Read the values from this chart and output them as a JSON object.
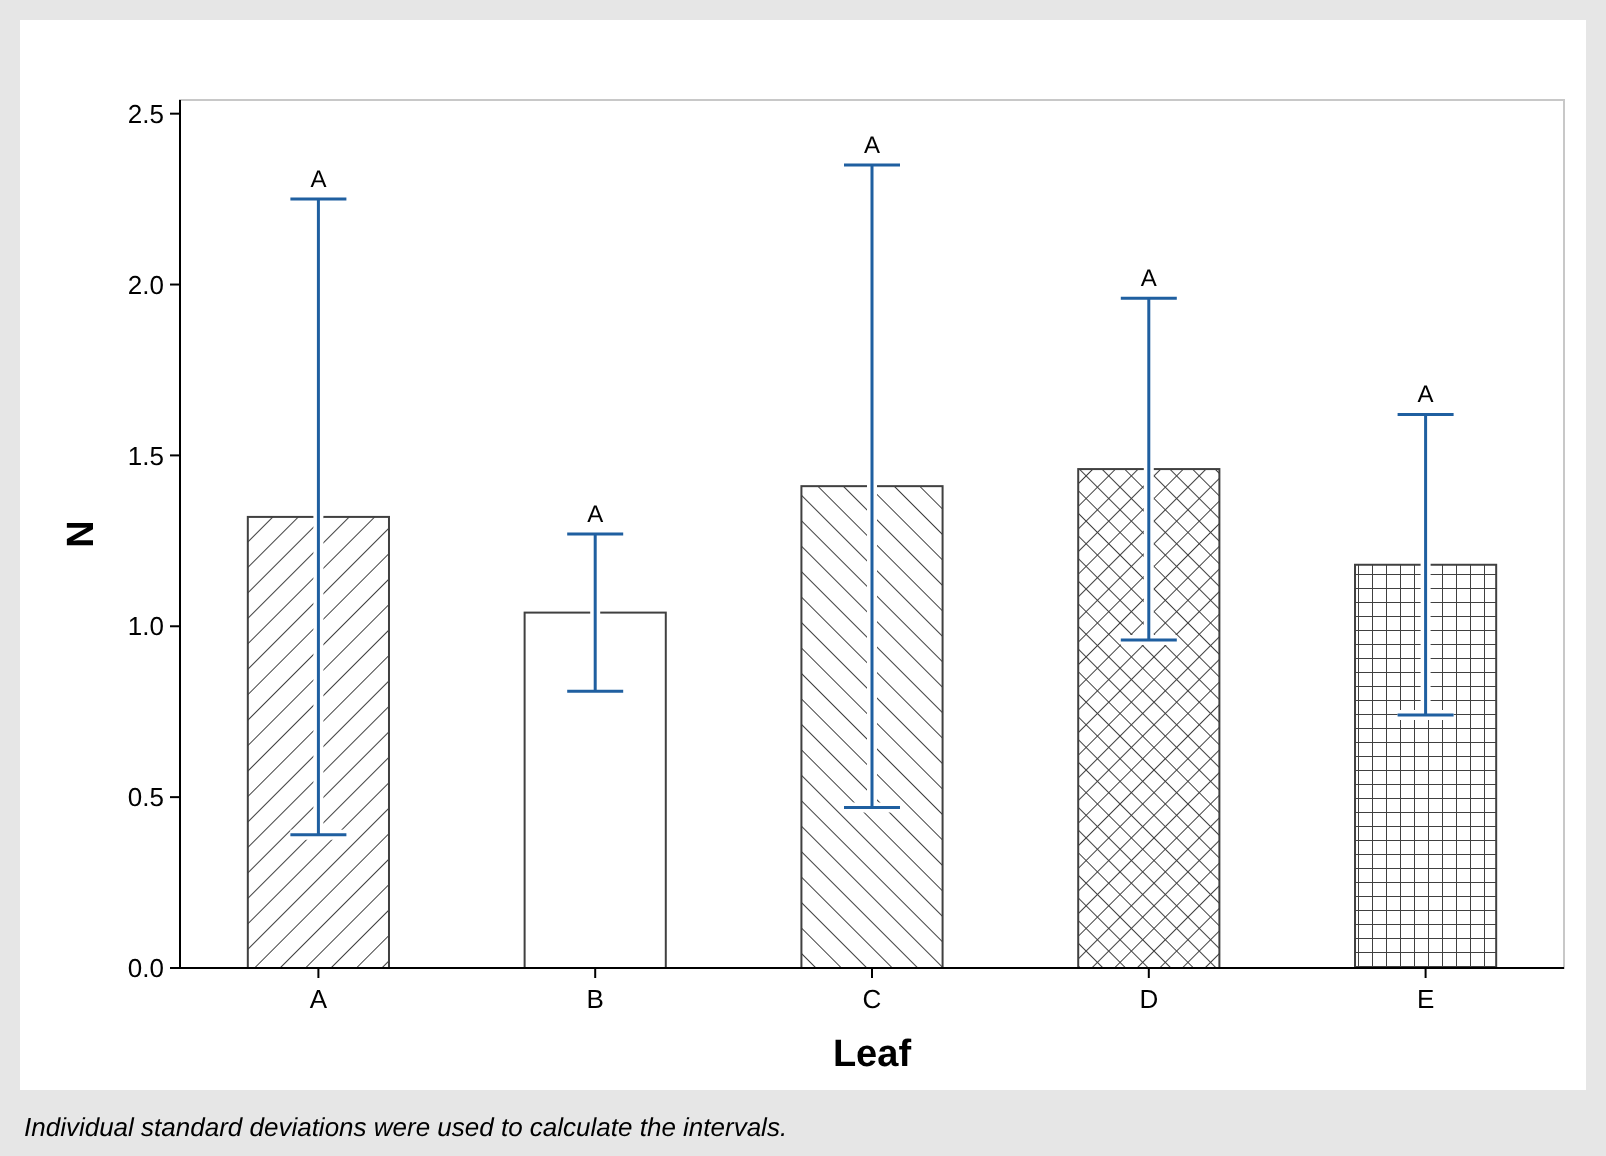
{
  "chart_data": {
    "type": "bar",
    "xlabel": "Leaf",
    "ylabel": "N",
    "categories": [
      "A",
      "B",
      "C",
      "D",
      "E"
    ],
    "values": [
      1.32,
      1.04,
      1.41,
      1.46,
      1.18
    ],
    "errors": [
      0.93,
      0.23,
      0.94,
      0.5,
      0.44
    ],
    "color": "#404040",
    "ylim": [
      0,
      2.54
    ],
    "yticks": [
      {
        "value": 0,
        "label": "0.0"
      },
      {
        "value": 0.5,
        "label": "0.5"
      },
      {
        "value": 1,
        "label": "1.0"
      },
      {
        "value": 1.5,
        "label": "1.5"
      },
      {
        "value": 2,
        "label": "2.0"
      },
      {
        "value": 2.5,
        "label": "2.5"
      }
    ],
    "annotations": [
      "A",
      "A",
      "A",
      "A",
      "A",
      "Individual standard deviations were used to calculate the intervals."
    ]
  }
}
